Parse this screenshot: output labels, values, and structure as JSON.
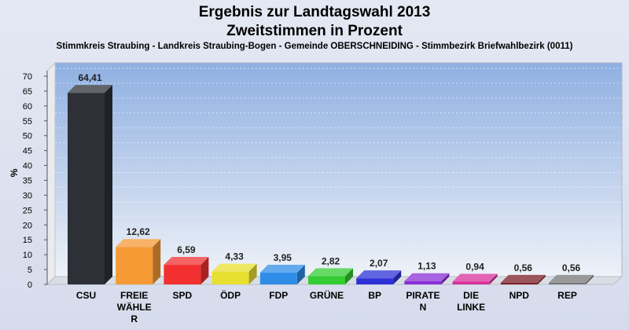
{
  "title": "Ergebnis zur Landtagswahl 2013",
  "subtitle": "Zweitstimmen in Prozent",
  "caption": "Stimmkreis Straubing - Landkreis Straubing-Bogen - Gemeinde OBERSCHNEIDING - Stimmbezirk Briefwahlbezirk  (0011)",
  "chart_data": {
    "type": "bar",
    "title": "Ergebnis zur Landtagswahl 2013",
    "subtitle": "Zweitstimmen in Prozent",
    "ylabel": "%",
    "xlabel": "",
    "ylim": [
      0,
      70
    ],
    "yticks": [
      0,
      5,
      10,
      15,
      20,
      25,
      30,
      35,
      40,
      45,
      50,
      55,
      60,
      65,
      70
    ],
    "grid": true,
    "categories": [
      [
        "CSU"
      ],
      [
        "FREIE",
        "WÄHLE",
        "R"
      ],
      [
        "SPD"
      ],
      [
        "ÖDP"
      ],
      [
        "FDP"
      ],
      [
        "GRÜNE"
      ],
      [
        "BP"
      ],
      [
        "PIRATE",
        "N"
      ],
      [
        "DIE",
        "LINKE"
      ],
      [
        "NPD"
      ],
      [
        "REP"
      ]
    ],
    "values": [
      64.41,
      12.62,
      6.59,
      4.33,
      3.95,
      2.82,
      2.07,
      1.13,
      0.94,
      0.56,
      0.56
    ],
    "value_labels": [
      "64,41",
      "12,62",
      "6,59",
      "4,33",
      "3,95",
      "2,82",
      "2,07",
      "1,13",
      "0,94",
      "0,56",
      "0,56"
    ],
    "colors": [
      "#2e3038",
      "#f59a35",
      "#f23030",
      "#e8e030",
      "#2f8de8",
      "#33cc33",
      "#2c32d6",
      "#8a2fd6",
      "#d8309c",
      "#7a1c26",
      "#777777"
    ]
  }
}
